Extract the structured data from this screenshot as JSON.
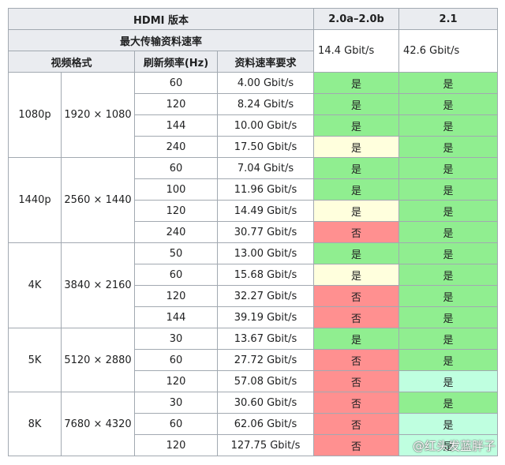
{
  "header": {
    "title": "HDMI 版本",
    "versions": [
      "2.0a–2.0b",
      "2.1"
    ],
    "max_rate_label": "最大传输资料速率",
    "max_rates": [
      "14.4 Gbit/s",
      "42.6 Gbit/s"
    ],
    "columns": [
      "视频格式",
      "刷新频率(Hz)",
      "资料速率要求"
    ]
  },
  "groups": [
    {
      "format": "1080p",
      "resolution": "1920 × 1080",
      "rows": [
        {
          "hz": "60",
          "rate": "4.00 Gbit/s",
          "support": [
            {
              "text": "是",
              "color": "#90ee90"
            },
            {
              "text": "是",
              "color": "#90ee90"
            }
          ]
        },
        {
          "hz": "120",
          "rate": "8.24 Gbit/s",
          "support": [
            {
              "text": "是",
              "color": "#90ee90"
            },
            {
              "text": "是",
              "color": "#90ee90"
            }
          ]
        },
        {
          "hz": "144",
          "rate": "10.00 Gbit/s",
          "support": [
            {
              "text": "是",
              "color": "#90ee90"
            },
            {
              "text": "是",
              "color": "#90ee90"
            }
          ]
        },
        {
          "hz": "240",
          "rate": "17.50 Gbit/s",
          "support": [
            {
              "text": "是",
              "color": "#ffffdd"
            },
            {
              "text": "是",
              "color": "#90ee90"
            }
          ]
        }
      ]
    },
    {
      "format": "1440p",
      "resolution": "2560 × 1440",
      "rows": [
        {
          "hz": "60",
          "rate": "7.04 Gbit/s",
          "support": [
            {
              "text": "是",
              "color": "#90ee90"
            },
            {
              "text": "是",
              "color": "#90ee90"
            }
          ]
        },
        {
          "hz": "100",
          "rate": "11.96 Gbit/s",
          "support": [
            {
              "text": "是",
              "color": "#90ee90"
            },
            {
              "text": "是",
              "color": "#90ee90"
            }
          ]
        },
        {
          "hz": "120",
          "rate": "14.49 Gbit/s",
          "support": [
            {
              "text": "是",
              "color": "#ffffdd"
            },
            {
              "text": "是",
              "color": "#90ee90"
            }
          ]
        },
        {
          "hz": "240",
          "rate": "30.77 Gbit/s",
          "support": [
            {
              "text": "否",
              "color": "#ff9090"
            },
            {
              "text": "是",
              "color": "#90ee90"
            }
          ]
        }
      ]
    },
    {
      "format": "4K",
      "resolution": "3840 × 2160",
      "rows": [
        {
          "hz": "50",
          "rate": "13.00 Gbit/s",
          "support": [
            {
              "text": "是",
              "color": "#90ee90"
            },
            {
              "text": "是",
              "color": "#90ee90"
            }
          ]
        },
        {
          "hz": "60",
          "rate": "15.68 Gbit/s",
          "support": [
            {
              "text": "是",
              "color": "#ffffdd"
            },
            {
              "text": "是",
              "color": "#90ee90"
            }
          ]
        },
        {
          "hz": "120",
          "rate": "32.27 Gbit/s",
          "support": [
            {
              "text": "否",
              "color": "#ff9090"
            },
            {
              "text": "是",
              "color": "#90ee90"
            }
          ]
        },
        {
          "hz": "144",
          "rate": "39.19 Gbit/s",
          "support": [
            {
              "text": "否",
              "color": "#ff9090"
            },
            {
              "text": "是",
              "color": "#90ee90"
            }
          ]
        }
      ]
    },
    {
      "format": "5K",
      "resolution": "5120 × 2880",
      "rows": [
        {
          "hz": "30",
          "rate": "13.67 Gbit/s",
          "support": [
            {
              "text": "是",
              "color": "#90ee90"
            },
            {
              "text": "是",
              "color": "#90ee90"
            }
          ]
        },
        {
          "hz": "60",
          "rate": "27.72 Gbit/s",
          "support": [
            {
              "text": "否",
              "color": "#ff9090"
            },
            {
              "text": "是",
              "color": "#90ee90"
            }
          ]
        },
        {
          "hz": "120",
          "rate": "57.08 Gbit/s",
          "support": [
            {
              "text": "否",
              "color": "#ff9090"
            },
            {
              "text": "是",
              "color": "#bfffe0"
            }
          ]
        }
      ]
    },
    {
      "format": "8K",
      "resolution": "7680 × 4320",
      "rows": [
        {
          "hz": "30",
          "rate": "30.60 Gbit/s",
          "support": [
            {
              "text": "否",
              "color": "#ff9090"
            },
            {
              "text": "是",
              "color": "#90ee90"
            }
          ]
        },
        {
          "hz": "60",
          "rate": "62.06 Gbit/s",
          "support": [
            {
              "text": "否",
              "color": "#ff9090"
            },
            {
              "text": "是",
              "color": "#bfffe0"
            }
          ]
        },
        {
          "hz": "120",
          "rate": "127.75 Gbit/s",
          "support": [
            {
              "text": "否",
              "color": "#ff9090"
            },
            {
              "text": "是",
              "color": "#bfffe0"
            }
          ]
        }
      ]
    }
  ],
  "watermark": "@红头发蓝胖子"
}
